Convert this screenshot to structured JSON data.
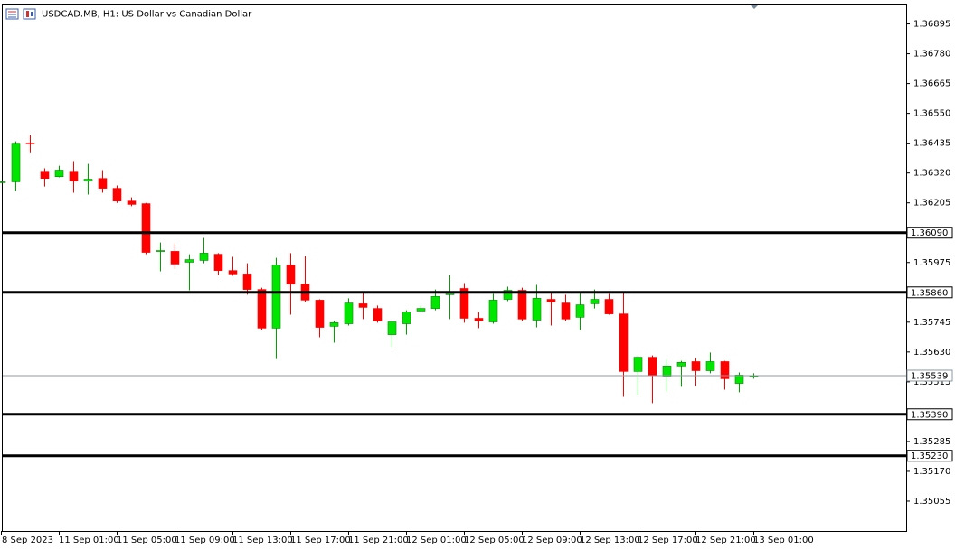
{
  "chart_data": {
    "type": "candlestick",
    "title": "USDCAD.MB, H1:  US Dollar vs Canadian Dollar",
    "categories": [
      "8 Sep 2023",
      null,
      null,
      null,
      "11 Sep 01:00",
      null,
      null,
      null,
      "11 Sep 05:00",
      null,
      null,
      null,
      "11 Sep 09:00",
      null,
      null,
      null,
      "11 Sep 13:00",
      null,
      null,
      null,
      "11 Sep 17:00",
      null,
      null,
      null,
      "11 Sep 21:00",
      null,
      null,
      null,
      "12 Sep 01:00",
      null,
      null,
      null,
      "12 Sep 05:00",
      null,
      null,
      null,
      "12 Sep 09:00",
      null,
      null,
      null,
      "12 Sep 13:00",
      null,
      null,
      null,
      "12 Sep 17:00",
      null,
      null,
      null,
      "12 Sep 21:00",
      null,
      null,
      null,
      "13 Sep 01:00"
    ],
    "open": [
      1.36286,
      1.36286,
      1.36435,
      1.36327,
      1.36306,
      1.36327,
      1.36289,
      1.36299,
      1.36261,
      1.36212,
      1.36202,
      1.36018,
      1.36018,
      1.35976,
      1.35983,
      1.36007,
      1.35944,
      1.35931,
      1.35871,
      1.35722,
      1.35965,
      1.35892,
      1.3583,
      1.35729,
      1.35739,
      1.35816,
      1.35798,
      1.35697,
      1.35739,
      1.35788,
      1.35798,
      1.35851,
      1.35875,
      1.3576,
      1.35746,
      1.35833,
      1.35868,
      1.35753,
      1.35833,
      1.35819,
      1.35764,
      1.35816,
      1.35833,
      1.35777,
      1.35555,
      1.3561,
      1.35537,
      1.35576,
      1.35593,
      1.35558,
      1.35593,
      1.35509,
      1.35537
    ],
    "high": [
      1.36289,
      1.36442,
      1.36466,
      1.36338,
      1.36348,
      1.36366,
      1.36355,
      1.36331,
      1.36272,
      1.36226,
      1.36205,
      1.36052,
      1.36049,
      1.36007,
      1.3607,
      1.36011,
      1.35997,
      1.35972,
      1.35878,
      1.35993,
      1.36011,
      1.36,
      1.35833,
      1.3575,
      1.35837,
      1.35857,
      1.35809,
      1.3575,
      1.35791,
      1.35809,
      1.35871,
      1.35927,
      1.35896,
      1.35784,
      1.35854,
      1.35882,
      1.35878,
      1.35889,
      1.35864,
      1.35851,
      1.35864,
      1.35871,
      1.35854,
      1.35857,
      1.35617,
      1.35617,
      1.356,
      1.35596,
      1.35607,
      1.35628,
      1.35596,
      1.35551,
      1.35548
    ],
    "low": [
      1.36282,
      1.36251,
      1.364,
      1.36268,
      1.36303,
      1.36244,
      1.36237,
      1.36244,
      1.36205,
      1.36192,
      1.36007,
      1.35941,
      1.35951,
      1.35868,
      1.35972,
      1.35927,
      1.35924,
      1.35851,
      1.35715,
      1.35603,
      1.35774,
      1.35823,
      1.35687,
      1.35666,
      1.35732,
      1.35757,
      1.35743,
      1.35649,
      1.35697,
      1.35784,
      1.35791,
      1.35757,
      1.35743,
      1.35722,
      1.35739,
      1.35826,
      1.3575,
      1.35725,
      1.35732,
      1.3575,
      1.35715,
      1.35798,
      1.35774,
      1.35457,
      1.35461,
      1.35433,
      1.35478,
      1.35496,
      1.35499,
      1.35548,
      1.35485,
      1.35475,
      1.35527
    ],
    "close": [
      1.36286,
      1.36435,
      1.36432,
      1.36299,
      1.36331,
      1.36289,
      1.36296,
      1.36261,
      1.36212,
      1.36199,
      1.36014,
      1.36021,
      1.35969,
      1.35986,
      1.36011,
      1.35944,
      1.35931,
      1.35871,
      1.35722,
      1.35965,
      1.35892,
      1.3583,
      1.35725,
      1.35743,
      1.35819,
      1.35802,
      1.3575,
      1.35746,
      1.35784,
      1.35798,
      1.35844,
      1.35861,
      1.3576,
      1.3575,
      1.3583,
      1.35868,
      1.35757,
      1.35837,
      1.35823,
      1.35757,
      1.35812,
      1.35833,
      1.35777,
      1.35555,
      1.3561,
      1.35541,
      1.35576,
      1.3559,
      1.35558,
      1.35593,
      1.35527,
      1.35541,
      1.35539
    ],
    "up_color": "#00e600",
    "down_color": "#ff0000",
    "ylim": [
      1.3494,
      1.3697
    ],
    "yticks": [
      1.36895,
      {
        "value": 1.3678,
        "label": "1.36780"
      },
      1.36665,
      {
        "value": 1.3655,
        "label": "1.36550"
      },
      1.36435,
      {
        "value": 1.3632,
        "label": "1.36320"
      },
      1.36205,
      1.35975,
      1.35745,
      {
        "value": 1.3563,
        "label": "1.35630"
      },
      1.35515,
      1.35285,
      {
        "value": 1.3517,
        "label": "1.35170"
      },
      1.35055
    ],
    "levels": [
      {
        "value": 1.3609,
        "label": "1.36090"
      },
      {
        "value": 1.3586,
        "label": "1.35860"
      },
      {
        "value": 1.3539,
        "label": "1.35390"
      },
      {
        "value": 1.3523,
        "label": "1.35230"
      }
    ],
    "current_price": 1.35539
  }
}
